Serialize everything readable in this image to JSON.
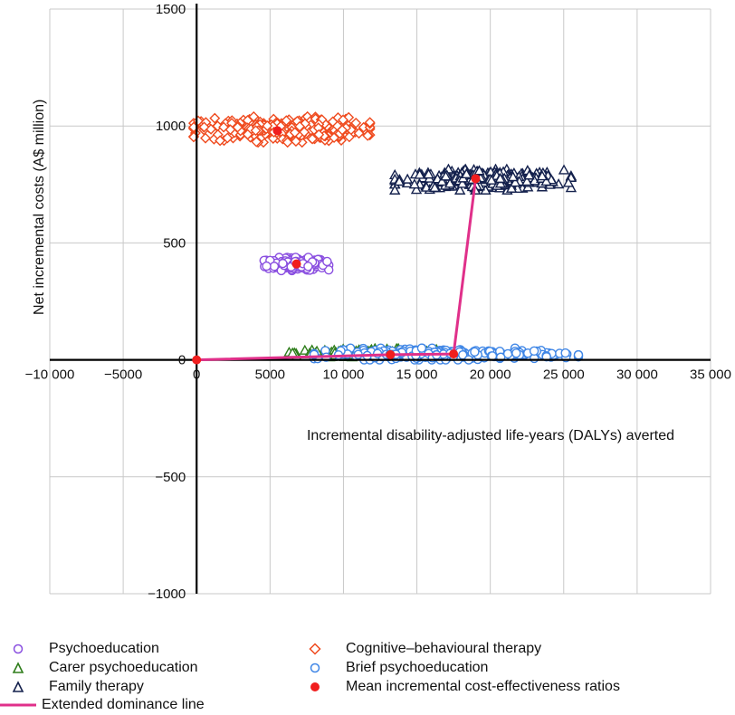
{
  "chart_data": {
    "type": "scatter",
    "title": "",
    "xlabel": "Incremental disability-adjusted life-years (DALYs) averted",
    "ylabel": "Net incremental costs (A$ million)",
    "xlim": [
      -10000,
      35000
    ],
    "ylim": [
      -1000,
      1500
    ],
    "x_ticks": [
      -10000,
      -5000,
      0,
      5000,
      10000,
      15000,
      20000,
      25000,
      30000,
      35000
    ],
    "x_tick_labels": [
      "−10 000",
      "−5000",
      "0",
      "5000",
      "10 000",
      "15 000",
      "20 000",
      "25 000",
      "30 000",
      "35 000"
    ],
    "y_ticks": [
      -1000,
      -500,
      0,
      500,
      1000,
      1500
    ],
    "y_tick_labels": [
      "−1000",
      "−500",
      "0",
      "500",
      "1000",
      "1500"
    ],
    "grid": true,
    "series": [
      {
        "name": "Psychoeducation",
        "marker": "circle-open",
        "color": "#8a4fe0",
        "center": [
          6800,
          410
        ],
        "spread": [
          2200,
          28
        ],
        "n": 220
      },
      {
        "name": "Carer psychoeducation",
        "marker": "triangle-open",
        "color": "#2e7d1a",
        "center": [
          11500,
          30
        ],
        "spread": [
          5200,
          18
        ],
        "n": 140
      },
      {
        "name": "Family therapy",
        "marker": "triangle-open",
        "color": "#14214d",
        "center": [
          19500,
          770
        ],
        "spread": [
          6000,
          45
        ],
        "n": 320
      },
      {
        "name": "Cognitive–behavioural therapy",
        "marker": "diamond-open",
        "color": "#ef4a1e",
        "center": [
          5800,
          985
        ],
        "spread": [
          6000,
          55
        ],
        "n": 320
      },
      {
        "name": "Brief psychoeducation",
        "marker": "circle-open",
        "color": "#3f86e6",
        "center": [
          17000,
          25
        ],
        "spread": [
          9000,
          25
        ],
        "n": 260
      }
    ],
    "mean_icers": {
      "name": "Mean incremental cost-effectiveness ratios",
      "color": "#f01e1e",
      "x": [
        0,
        13200,
        17500,
        19000,
        6800,
        5500
      ],
      "y": [
        0,
        22,
        25,
        775,
        410,
        980
      ]
    },
    "dominance_line": {
      "name": "Extended dominance line",
      "color": "#e0308a",
      "x": [
        0,
        13200,
        17500,
        19000
      ],
      "y": [
        0,
        22,
        25,
        775
      ]
    }
  },
  "legend": {
    "items": [
      {
        "label": "Psychoeducation"
      },
      {
        "label": "Carer psychoeducation"
      },
      {
        "label": "Family therapy"
      },
      {
        "label": "Extended dominance line"
      },
      {
        "label": "Cognitive–behavioural therapy"
      },
      {
        "label": "Brief psychoeducation"
      },
      {
        "label": "Mean incremental cost-effectiveness ratios"
      }
    ]
  }
}
